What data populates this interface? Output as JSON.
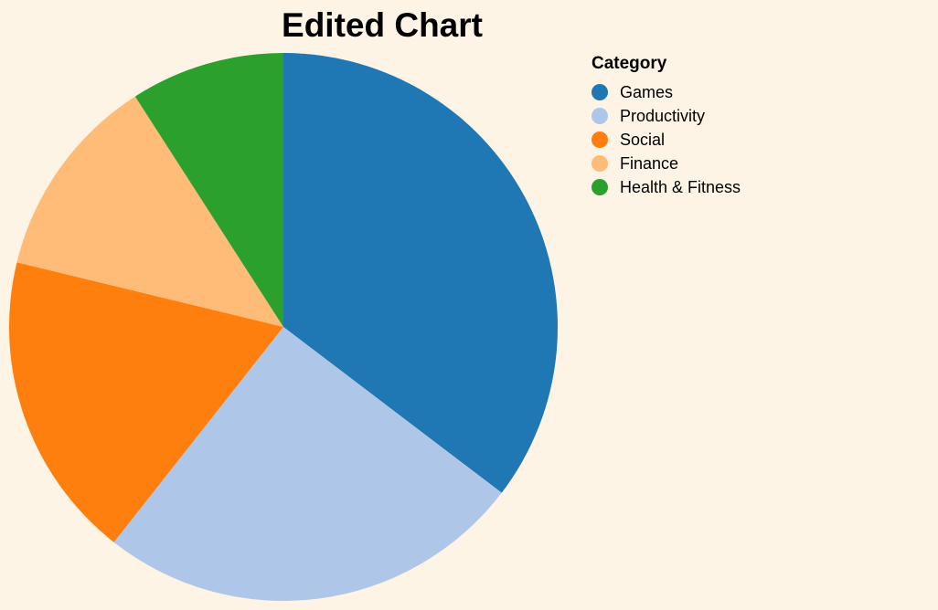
{
  "chart_data": {
    "type": "pie",
    "title": "Edited Chart",
    "legend": {
      "title": "Category",
      "placement": "right"
    },
    "categories": [
      "Games",
      "Productivity",
      "Social",
      "Finance",
      "Health & Fitness"
    ],
    "values": [
      35,
      25,
      18,
      12,
      9
    ],
    "colors": [
      "#1f77b4",
      "#aec7e8",
      "#ff7f0e",
      "#ffbb78",
      "#2ca02c"
    ]
  }
}
